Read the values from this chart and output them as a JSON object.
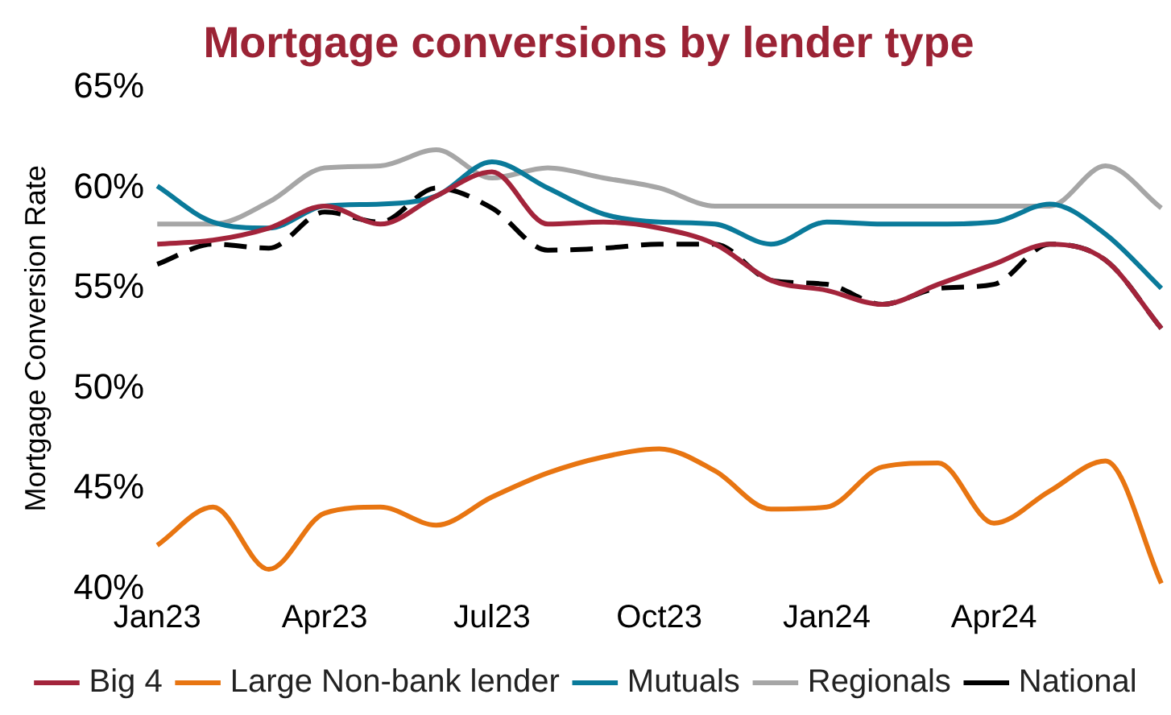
{
  "chart_data": {
    "type": "line",
    "title": "Mortgage conversions by lender type",
    "ylabel": "Mortgage Conversion Rate",
    "categories": [
      "Jan23",
      null,
      null,
      "Apr23",
      null,
      null,
      "Jul23",
      null,
      null,
      "Oct23",
      null,
      null,
      "Jan24",
      null,
      null,
      "Apr24",
      null,
      null,
      null
    ],
    "ylim": [
      40,
      65
    ],
    "yticks": [
      {
        "value": 40,
        "label": "40%"
      },
      {
        "value": 45,
        "label": "45%"
      },
      {
        "value": 50,
        "label": "50%"
      },
      {
        "value": 55,
        "label": "55%"
      },
      {
        "value": 60,
        "label": "60%"
      },
      {
        "value": 65,
        "label": "65%"
      }
    ],
    "grid": false,
    "legend": "bottom",
    "marker": "none",
    "series": [
      {
        "name": "Big 4",
        "color": "#a3243b",
        "values": [
          57.2,
          57.4,
          58.0,
          59.1,
          58.2,
          59.6,
          60.8,
          58.2,
          58.3,
          58.0,
          57.2,
          55.4,
          54.9,
          54.2,
          55.2,
          56.2,
          57.2,
          56.4,
          53.0
        ]
      },
      {
        "name": "Large Non-bank lender",
        "color": "#e87511",
        "values": [
          42.2,
          44.1,
          41.0,
          43.8,
          44.1,
          43.2,
          44.6,
          45.8,
          46.6,
          47.0,
          45.9,
          44.0,
          44.1,
          46.1,
          46.3,
          43.3,
          44.9,
          46.4,
          40.3
        ]
      },
      {
        "name": "Mutuals",
        "color": "#0a7a9a",
        "values": [
          60.1,
          58.3,
          58.0,
          59.1,
          59.2,
          59.6,
          61.3,
          60.0,
          58.7,
          58.3,
          58.2,
          57.2,
          58.3,
          58.2,
          58.2,
          58.3,
          59.2,
          57.7,
          55.0
        ]
      },
      {
        "name": "Regionals",
        "color": "#a6a6a6",
        "values": [
          58.2,
          58.2,
          59.3,
          61.0,
          61.1,
          61.9,
          60.5,
          61.0,
          60.5,
          60.0,
          59.1,
          59.1,
          59.1,
          59.1,
          59.1,
          59.1,
          59.1,
          61.1,
          59.0
        ]
      },
      {
        "name": "National",
        "color": "#000000",
        "line_style": "dashed",
        "values": [
          56.2,
          57.2,
          57.0,
          58.8,
          58.3,
          60.0,
          59.0,
          56.9,
          57.0,
          57.2,
          57.2,
          55.4,
          55.2,
          54.2,
          55.0,
          55.2,
          57.2,
          56.4,
          53.0
        ]
      }
    ]
  }
}
